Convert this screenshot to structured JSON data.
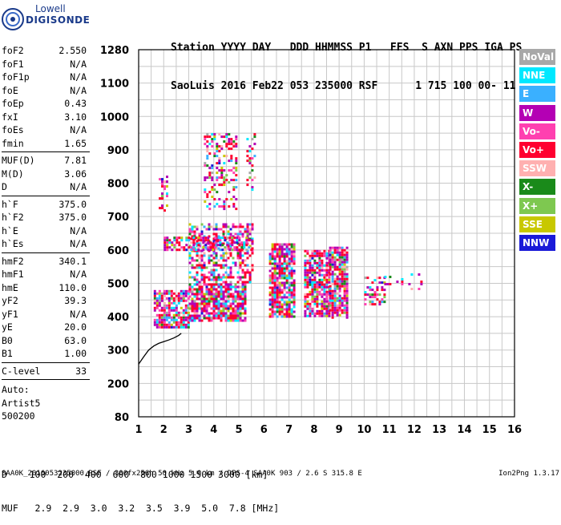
{
  "logo": {
    "line1": "Lowell",
    "line2": "DIGISONDE"
  },
  "header": {
    "line1": "Station YYYY DAY   DDD HHMMSS P1   FFS  S AXN PPS IGA PS",
    "line2": "SaoLuis 2016 Feb22 053 235000 RSF      1 715 100 00- 11"
  },
  "params": [
    {
      "k": "foF2",
      "v": "2.550"
    },
    {
      "k": "foF1",
      "v": "N/A"
    },
    {
      "k": "foF1p",
      "v": "N/A"
    },
    {
      "k": "foE",
      "v": "N/A"
    },
    {
      "k": "foEp",
      "v": "0.43"
    },
    {
      "k": "fxI",
      "v": "3.10"
    },
    {
      "k": "foEs",
      "v": "N/A"
    },
    {
      "k": "fmin",
      "v": "1.65",
      "sep": true
    },
    {
      "k": "MUF(D)",
      "v": "7.81"
    },
    {
      "k": "M(D)",
      "v": "3.06"
    },
    {
      "k": "D",
      "v": "N/A",
      "sep": true
    },
    {
      "k": "h`F",
      "v": "375.0"
    },
    {
      "k": "h`F2",
      "v": "375.0"
    },
    {
      "k": "h`E",
      "v": "N/A"
    },
    {
      "k": "h`Es",
      "v": "N/A",
      "sep": true
    },
    {
      "k": "hmF2",
      "v": "340.1"
    },
    {
      "k": "hmF1",
      "v": "N/A"
    },
    {
      "k": "hmE",
      "v": "110.0"
    },
    {
      "k": "yF2",
      "v": "39.3"
    },
    {
      "k": "yF1",
      "v": "N/A"
    },
    {
      "k": "yE",
      "v": "20.0"
    },
    {
      "k": "B0",
      "v": "63.0"
    },
    {
      "k": "B1",
      "v": "1.00",
      "sep": true
    },
    {
      "k": "C-level",
      "v": "33",
      "sep": true
    }
  ],
  "auto": {
    "l1": "Auto:",
    "l2": "Artist5",
    "l3": "500200"
  },
  "bottom": {
    "d_row": "D    100  200  400  600  800 1000 1500 3000 [km]",
    "muf_row": "MUF   2.9  2.9  3.0  3.2  3.5  3.9  5.0  7.8 [MHz]"
  },
  "footer": {
    "left": "SAA0K_2016053235000.RSF / 300fx256h 50 kHz 5.0 km / DPS-4 SAA0K 903 / 2.6 S 315.8 E",
    "right": "Ion2Png 1.3.17"
  },
  "legend": [
    {
      "label": "NoVal",
      "color": "#a8a8a8"
    },
    {
      "label": "NNE",
      "color": "#00e8ff"
    },
    {
      "label": "E",
      "color": "#3ab0ff"
    },
    {
      "label": "W",
      "color": "#b400b4"
    },
    {
      "label": "Vo-",
      "color": "#ff40b0"
    },
    {
      "label": "Vo+",
      "color": "#ff0030"
    },
    {
      "label": "SSW",
      "color": "#ffb0b0"
    },
    {
      "label": "X-",
      "color": "#1a8a1a"
    },
    {
      "label": "X+",
      "color": "#7ec850"
    },
    {
      "label": "SSE",
      "color": "#c8c800"
    },
    {
      "label": "NNW",
      "color": "#1a1ad8"
    }
  ],
  "chart_data": {
    "type": "scatter",
    "x_ticks": [
      "1",
      "2",
      "3",
      "4",
      "5",
      "6",
      "7",
      "8",
      "9",
      "10",
      "11",
      "12",
      "13",
      "14",
      "15",
      "16"
    ],
    "y_ticks": [
      "80",
      "200",
      "300",
      "400",
      "500",
      "600",
      "700",
      "800",
      "900",
      "1000",
      "1100",
      "1280"
    ],
    "xlim": [
      1,
      16
    ],
    "ylim": [
      80,
      1280
    ],
    "grid": true,
    "clusters": [
      {
        "x": [
          1.6,
          3.0
        ],
        "y": [
          370,
          480
        ],
        "density": 0.75
      },
      {
        "x": [
          3.0,
          5.3
        ],
        "y": [
          390,
          500
        ],
        "density": 0.8
      },
      {
        "x": [
          3.0,
          5.5
        ],
        "y": [
          500,
          680
        ],
        "density": 0.45
      },
      {
        "x": [
          3.6,
          4.9
        ],
        "y": [
          720,
          950
        ],
        "density": 0.35
      },
      {
        "x": [
          6.2,
          7.2
        ],
        "y": [
          400,
          620
        ],
        "density": 0.8
      },
      {
        "x": [
          7.6,
          8.6
        ],
        "y": [
          400,
          600
        ],
        "density": 0.8
      },
      {
        "x": [
          8.6,
          9.3
        ],
        "y": [
          400,
          610
        ],
        "density": 0.8
      },
      {
        "x": [
          10.0,
          10.8
        ],
        "y": [
          440,
          520
        ],
        "density": 0.35
      },
      {
        "x": [
          10.8,
          12.3
        ],
        "y": [
          480,
          530
        ],
        "density": 0.15
      },
      {
        "x": [
          5.3,
          5.6
        ],
        "y": [
          780,
          950
        ],
        "density": 0.25
      },
      {
        "x": [
          1.8,
          2.1
        ],
        "y": [
          720,
          830
        ],
        "density": 0.3
      },
      {
        "x": [
          2.0,
          5.5
        ],
        "y": [
          600,
          640
        ],
        "density": 0.6
      }
    ],
    "trace": {
      "x": [
        1.0,
        1.2,
        1.4,
        1.6,
        1.8,
        2.0,
        2.2,
        2.4,
        2.6,
        2.7
      ],
      "y": [
        258,
        280,
        300,
        312,
        320,
        325,
        330,
        336,
        344,
        350
      ]
    }
  }
}
